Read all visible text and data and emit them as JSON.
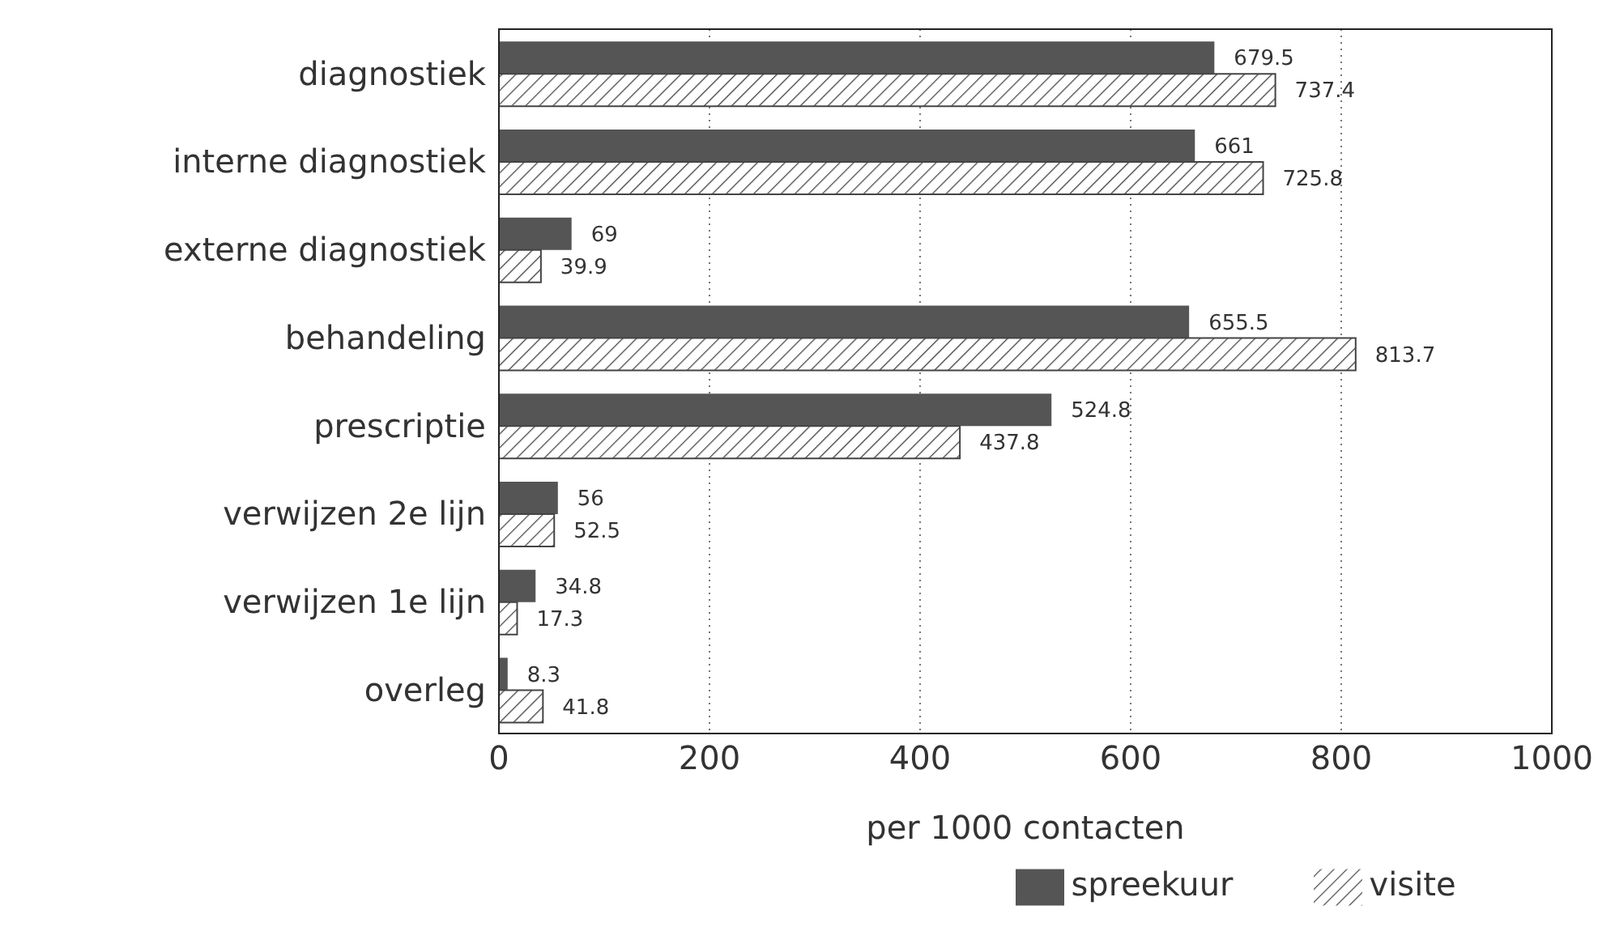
{
  "chart_data": {
    "type": "bar",
    "orientation": "horizontal",
    "xlabel": "per 1000 contacten",
    "categories": [
      "diagnostiek",
      "interne diagnostiek",
      "externe diagnostiek",
      "behandeling",
      "prescriptie",
      "verwijzen 2e lijn",
      "verwijzen 1e lijn",
      "overleg"
    ],
    "series": [
      {
        "name": "spreekuur",
        "color": "#555555",
        "values": [
          679.5,
          661,
          69,
          655.5,
          524.8,
          56,
          34.8,
          8.3
        ]
      },
      {
        "name": "visite",
        "color": "#444444",
        "values": [
          737.4,
          725.8,
          39.9,
          813.7,
          437.8,
          52.5,
          17.3,
          41.8
        ]
      }
    ],
    "xlim": [
      0,
      1000
    ],
    "xticks": [
      0,
      200,
      400,
      600,
      800,
      1000
    ],
    "grid": "x",
    "legend": "bottom",
    "data_labels": true
  }
}
